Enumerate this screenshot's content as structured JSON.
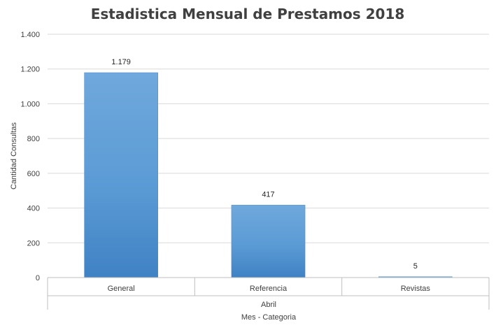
{
  "chart_data": {
    "type": "bar",
    "title": "Estadistica Mensual de Prestamos 2018",
    "ylabel": "Cantidad Consultas",
    "xlabel": "Mes - Categoria",
    "group_label": "Abril",
    "categories": [
      "General",
      "Referencia",
      "Revistas"
    ],
    "values": [
      1179,
      417,
      5
    ],
    "value_labels": [
      "1.179",
      "417",
      "5"
    ],
    "yticks": [
      0,
      200,
      400,
      600,
      800,
      1000,
      1200,
      1400
    ],
    "ytick_labels": [
      "0",
      "200",
      "400",
      "600",
      "800",
      "1.000",
      "1.200",
      "1.400"
    ],
    "ylim": [
      0,
      1400
    ],
    "grid": true,
    "legend": "none",
    "bar_color": "#5b9bd5"
  }
}
